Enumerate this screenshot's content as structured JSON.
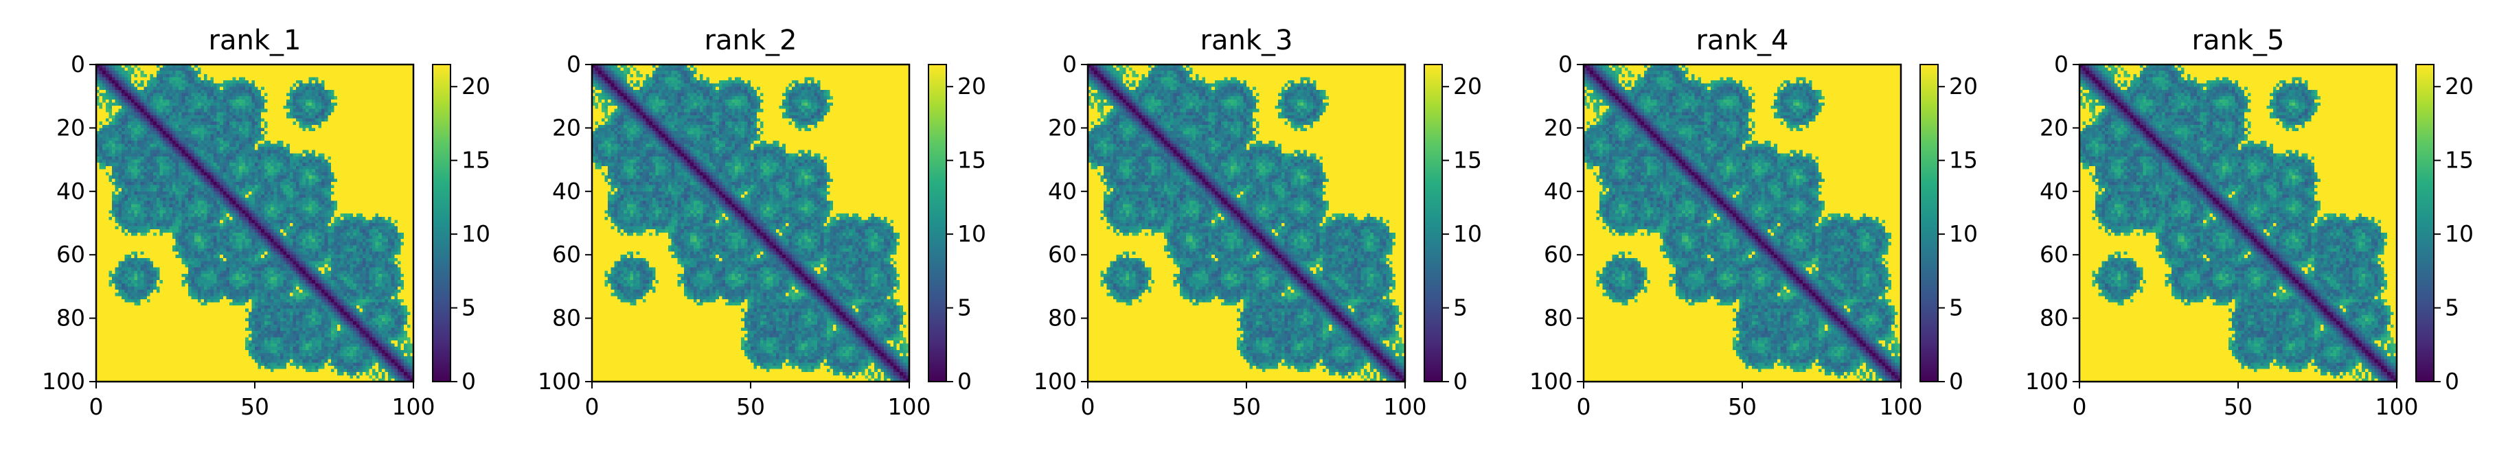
{
  "figure": {
    "background": "#ffffff"
  },
  "chart_data": [
    {
      "type": "heatmap",
      "title": "rank_1",
      "xlabel": "",
      "ylabel": "",
      "xlim": [
        0,
        100
      ],
      "ylim": [
        100,
        0
      ],
      "xticks": [
        0,
        50,
        100
      ],
      "yticks": [
        0,
        20,
        40,
        60,
        80,
        100
      ],
      "colorbar": {
        "range": [
          0,
          21.5
        ],
        "ticks": [
          0,
          5,
          10,
          15,
          20
        ],
        "colormap": "viridis"
      },
      "grid": false,
      "n_residues": 100,
      "description_values": "symmetric predicted aligned error style matrix; diagonal ~0, near contacts ~5-12, background ~21.5",
      "contact_blobs": [
        {
          "i": 12,
          "j": 32,
          "strength": 0.65
        },
        {
          "i": 12,
          "j": 20,
          "strength": 0.5
        },
        {
          "i": 20,
          "j": 32,
          "strength": 0.55
        },
        {
          "i": 12,
          "j": 45,
          "strength": 0.55
        },
        {
          "i": 32,
          "j": 45,
          "strength": 0.6
        },
        {
          "i": 12,
          "j": 67,
          "strength": 0.45
        },
        {
          "i": 20,
          "j": 45,
          "strength": 0.45
        },
        {
          "i": 32,
          "j": 55,
          "strength": 0.6
        },
        {
          "i": 45,
          "j": 55,
          "strength": 0.55
        },
        {
          "i": 45,
          "j": 67,
          "strength": 0.55
        },
        {
          "i": 35,
          "j": 67,
          "strength": 0.5
        },
        {
          "i": 55,
          "j": 67,
          "strength": 0.55
        },
        {
          "i": 55,
          "j": 80,
          "strength": 0.55
        },
        {
          "i": 67,
          "j": 80,
          "strength": 0.55
        },
        {
          "i": 55,
          "j": 88,
          "strength": 0.5
        },
        {
          "i": 67,
          "j": 88,
          "strength": 0.55
        },
        {
          "i": 80,
          "j": 90,
          "strength": 0.5
        },
        {
          "i": 80,
          "j": 60,
          "strength": 0.45
        },
        {
          "i": 5,
          "j": 25,
          "strength": 0.45
        },
        {
          "i": 25,
          "j": 40,
          "strength": 0.45
        }
      ]
    },
    {
      "type": "heatmap",
      "title": "rank_2",
      "xlabel": "",
      "ylabel": "",
      "xlim": [
        0,
        100
      ],
      "ylim": [
        100,
        0
      ],
      "xticks": [
        0,
        50,
        100
      ],
      "yticks": [
        0,
        20,
        40,
        60,
        80,
        100
      ],
      "colorbar": {
        "range": [
          0,
          21.5
        ],
        "ticks": [
          0,
          5,
          10,
          15,
          20
        ],
        "colormap": "viridis"
      },
      "grid": false,
      "n_residues": 100,
      "contact_blobs": "same as rank_1"
    },
    {
      "type": "heatmap",
      "title": "rank_3",
      "xlabel": "",
      "ylabel": "",
      "xlim": [
        0,
        100
      ],
      "ylim": [
        100,
        0
      ],
      "xticks": [
        0,
        50,
        100
      ],
      "yticks": [
        0,
        20,
        40,
        60,
        80,
        100
      ],
      "colorbar": {
        "range": [
          0,
          21.5
        ],
        "ticks": [
          0,
          5,
          10,
          15,
          20
        ],
        "colormap": "viridis"
      },
      "grid": false,
      "n_residues": 100,
      "contact_blobs": "same as rank_1"
    },
    {
      "type": "heatmap",
      "title": "rank_4",
      "xlabel": "",
      "ylabel": "",
      "xlim": [
        0,
        100
      ],
      "ylim": [
        100,
        0
      ],
      "xticks": [
        0,
        50,
        100
      ],
      "yticks": [
        0,
        20,
        40,
        60,
        80,
        100
      ],
      "colorbar": {
        "range": [
          0,
          21.5
        ],
        "ticks": [
          0,
          5,
          10,
          15,
          20
        ],
        "colormap": "viridis"
      },
      "grid": false,
      "n_residues": 100,
      "contact_blobs": "same as rank_1"
    },
    {
      "type": "heatmap",
      "title": "rank_5",
      "xlabel": "",
      "ylabel": "",
      "xlim": [
        0,
        100
      ],
      "ylim": [
        100,
        0
      ],
      "xticks": [
        0,
        50,
        100
      ],
      "yticks": [
        0,
        20,
        40,
        60,
        80,
        100
      ],
      "colorbar": {
        "range": [
          0,
          21.5
        ],
        "ticks": [
          0,
          5,
          10,
          15,
          20
        ],
        "colormap": "viridis"
      },
      "grid": false,
      "n_residues": 100,
      "contact_blobs": "same as rank_1"
    }
  ],
  "colors": {
    "viridis_stops": [
      "#440154",
      "#472c7a",
      "#3b518b",
      "#2c718e",
      "#21908d",
      "#27ad81",
      "#5cc863",
      "#aadc32",
      "#fde725"
    ],
    "axis": "#000000",
    "text": "#000000"
  }
}
